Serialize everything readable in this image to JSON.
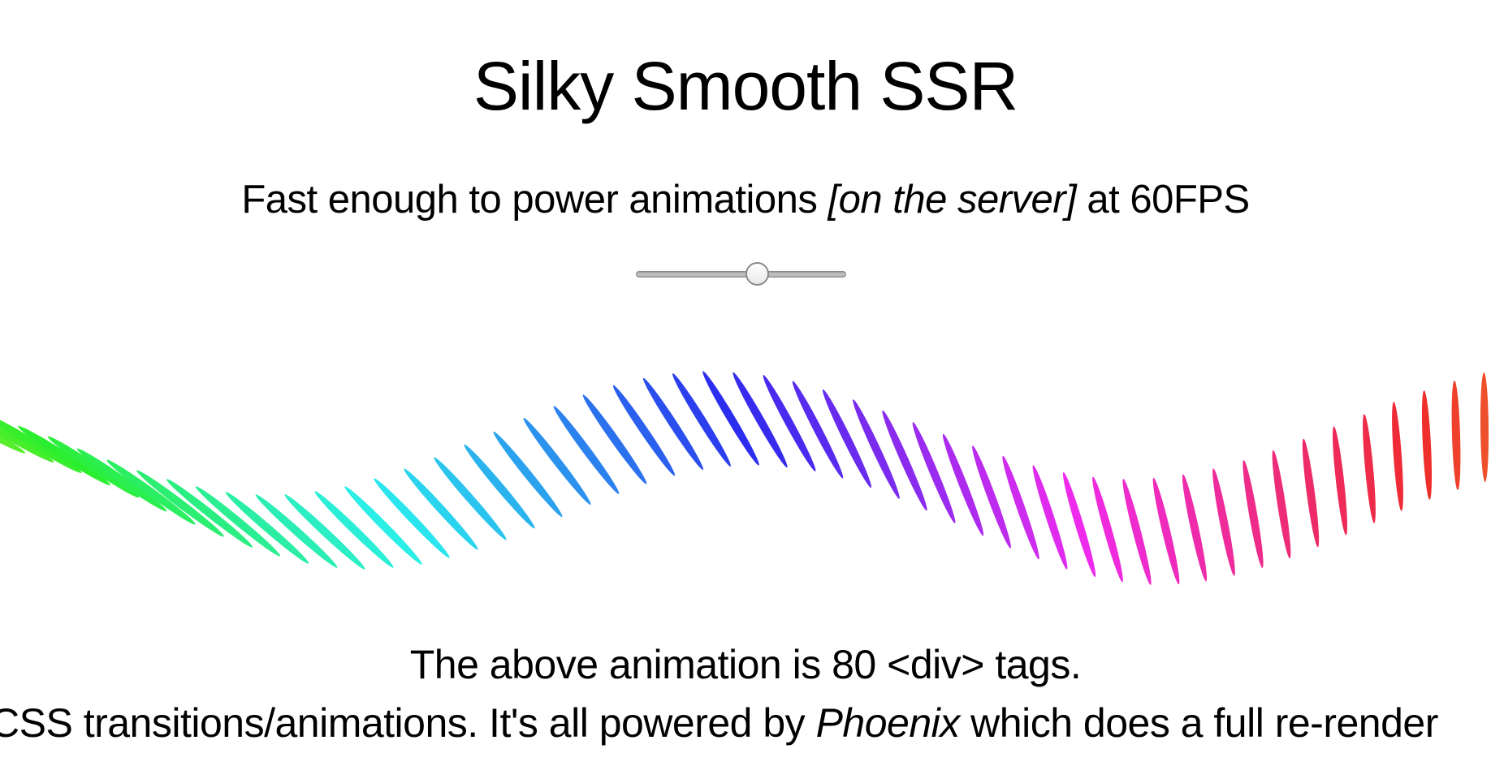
{
  "header": {
    "title": "Silky Smooth SSR",
    "subtitle_pre": "Fast enough to power animations ",
    "subtitle_em": "[on the server]",
    "subtitle_post": " at 60FPS"
  },
  "slider": {
    "value_fraction": 0.58
  },
  "animation": {
    "div_count": 80
  },
  "description": {
    "line1": "The above animation is 80 <div> tags.",
    "line2_pre": "CSS transitions/animations. It's all powered by ",
    "line2_em": "Phoenix",
    "line2_post": " which does a full re-render"
  }
}
